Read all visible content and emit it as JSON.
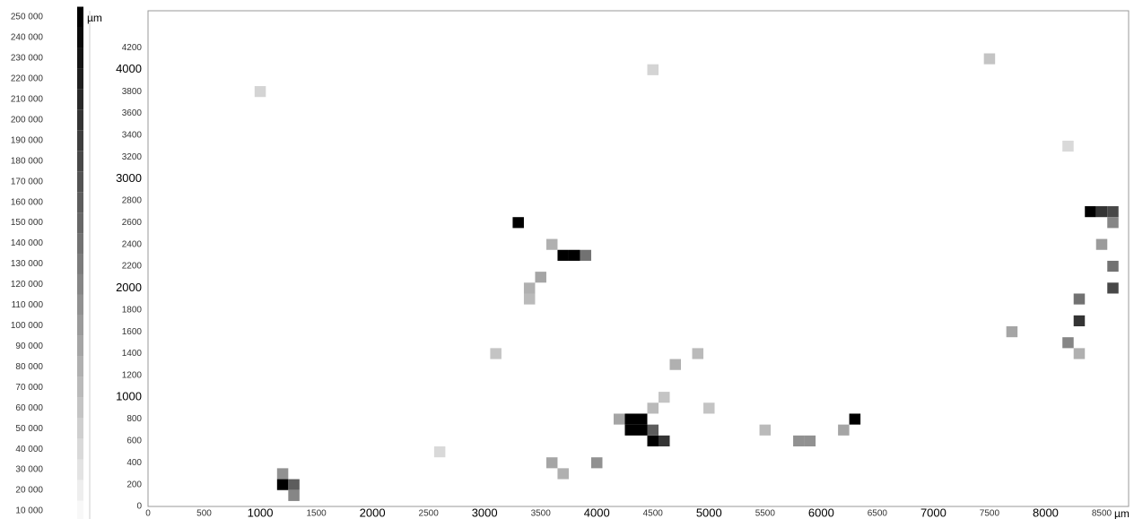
{
  "chart_data": {
    "type": "heatmap",
    "colorbar_unit": "µm",
    "x_unit": "µm",
    "clim": [
      10000,
      250000
    ],
    "colorbar_ticks": [
      {
        "value": 250000,
        "label": "250 000"
      },
      {
        "value": 240000,
        "label": "240 000"
      },
      {
        "value": 230000,
        "label": "230 000"
      },
      {
        "value": 220000,
        "label": "220 000"
      },
      {
        "value": 210000,
        "label": "210 000"
      },
      {
        "value": 200000,
        "label": "200 000"
      },
      {
        "value": 190000,
        "label": "190 000"
      },
      {
        "value": 180000,
        "label": "180 000"
      },
      {
        "value": 170000,
        "label": "170 000"
      },
      {
        "value": 160000,
        "label": "160 000"
      },
      {
        "value": 150000,
        "label": "150 000"
      },
      {
        "value": 140000,
        "label": "140 000"
      },
      {
        "value": 130000,
        "label": "130 000"
      },
      {
        "value": 120000,
        "label": "120 000"
      },
      {
        "value": 110000,
        "label": "110 000"
      },
      {
        "value": 100000,
        "label": "100 000"
      },
      {
        "value": 90000,
        "label": "90 000"
      },
      {
        "value": 80000,
        "label": "80 000"
      },
      {
        "value": 70000,
        "label": "70 000"
      },
      {
        "value": 60000,
        "label": "60 000"
      },
      {
        "value": 50000,
        "label": "50 000"
      },
      {
        "value": 40000,
        "label": "40 000"
      },
      {
        "value": 30000,
        "label": "30 000"
      },
      {
        "value": 20000,
        "label": "20 000"
      },
      {
        "value": 10000,
        "label": "10 000"
      }
    ],
    "xlim": [
      0,
      8740
    ],
    "ylim": [
      0,
      4540
    ],
    "xticks": [
      0,
      500,
      1000,
      1500,
      2000,
      2500,
      3000,
      3500,
      4000,
      4500,
      5000,
      5500,
      6000,
      6500,
      7000,
      7500,
      8000,
      8500
    ],
    "yticks": [
      0,
      200,
      400,
      600,
      800,
      1000,
      1200,
      1400,
      1600,
      1800,
      2000,
      2200,
      2400,
      2600,
      2800,
      3000,
      3200,
      3400,
      3600,
      3800,
      4000,
      4200
    ],
    "cell_size": 100,
    "cells": [
      {
        "x": 1200,
        "y": 200,
        "value": 250000
      },
      {
        "x": 1300,
        "y": 200,
        "value": 160000
      },
      {
        "x": 1300,
        "y": 100,
        "value": 120000
      },
      {
        "x": 1200,
        "y": 300,
        "value": 110000
      },
      {
        "x": 3300,
        "y": 2600,
        "value": 250000
      },
      {
        "x": 3700,
        "y": 2300,
        "value": 250000
      },
      {
        "x": 3800,
        "y": 2300,
        "value": 250000
      },
      {
        "x": 3900,
        "y": 2300,
        "value": 140000
      },
      {
        "x": 3600,
        "y": 2400,
        "value": 80000
      },
      {
        "x": 3500,
        "y": 2100,
        "value": 90000
      },
      {
        "x": 3400,
        "y": 2000,
        "value": 80000
      },
      {
        "x": 3400,
        "y": 1900,
        "value": 70000
      },
      {
        "x": 4300,
        "y": 700,
        "value": 250000
      },
      {
        "x": 4400,
        "y": 700,
        "value": 250000
      },
      {
        "x": 4300,
        "y": 800,
        "value": 250000
      },
      {
        "x": 4400,
        "y": 800,
        "value": 250000
      },
      {
        "x": 4500,
        "y": 600,
        "value": 250000
      },
      {
        "x": 4600,
        "y": 600,
        "value": 200000
      },
      {
        "x": 4500,
        "y": 700,
        "value": 160000
      },
      {
        "x": 4200,
        "y": 800,
        "value": 90000
      },
      {
        "x": 4500,
        "y": 900,
        "value": 70000
      },
      {
        "x": 4600,
        "y": 1000,
        "value": 60000
      },
      {
        "x": 4700,
        "y": 1300,
        "value": 80000
      },
      {
        "x": 6300,
        "y": 800,
        "value": 250000
      },
      {
        "x": 6200,
        "y": 700,
        "value": 90000
      },
      {
        "x": 5800,
        "y": 600,
        "value": 110000
      },
      {
        "x": 5900,
        "y": 600,
        "value": 110000
      },
      {
        "x": 5500,
        "y": 700,
        "value": 70000
      },
      {
        "x": 8400,
        "y": 2700,
        "value": 250000
      },
      {
        "x": 8500,
        "y": 2700,
        "value": 200000
      },
      {
        "x": 8600,
        "y": 2700,
        "value": 180000
      },
      {
        "x": 8600,
        "y": 2600,
        "value": 120000
      },
      {
        "x": 8500,
        "y": 2400,
        "value": 100000
      },
      {
        "x": 8600,
        "y": 2200,
        "value": 140000
      },
      {
        "x": 8600,
        "y": 2000,
        "value": 180000
      },
      {
        "x": 8300,
        "y": 1900,
        "value": 140000
      },
      {
        "x": 8300,
        "y": 1700,
        "value": 200000
      },
      {
        "x": 8300,
        "y": 1400,
        "value": 80000
      },
      {
        "x": 8200,
        "y": 1500,
        "value": 120000
      },
      {
        "x": 7700,
        "y": 1600,
        "value": 90000
      },
      {
        "x": 3700,
        "y": 300,
        "value": 80000
      },
      {
        "x": 4000,
        "y": 400,
        "value": 110000
      },
      {
        "x": 3600,
        "y": 400,
        "value": 90000
      },
      {
        "x": 2600,
        "y": 500,
        "value": 40000
      },
      {
        "x": 5000,
        "y": 900,
        "value": 60000
      },
      {
        "x": 4900,
        "y": 1400,
        "value": 70000
      },
      {
        "x": 3100,
        "y": 1400,
        "value": 60000
      },
      {
        "x": 1000,
        "y": 3800,
        "value": 45000
      },
      {
        "x": 4500,
        "y": 4000,
        "value": 45000
      },
      {
        "x": 7500,
        "y": 4100,
        "value": 60000
      },
      {
        "x": 8200,
        "y": 3300,
        "value": 40000
      }
    ]
  }
}
